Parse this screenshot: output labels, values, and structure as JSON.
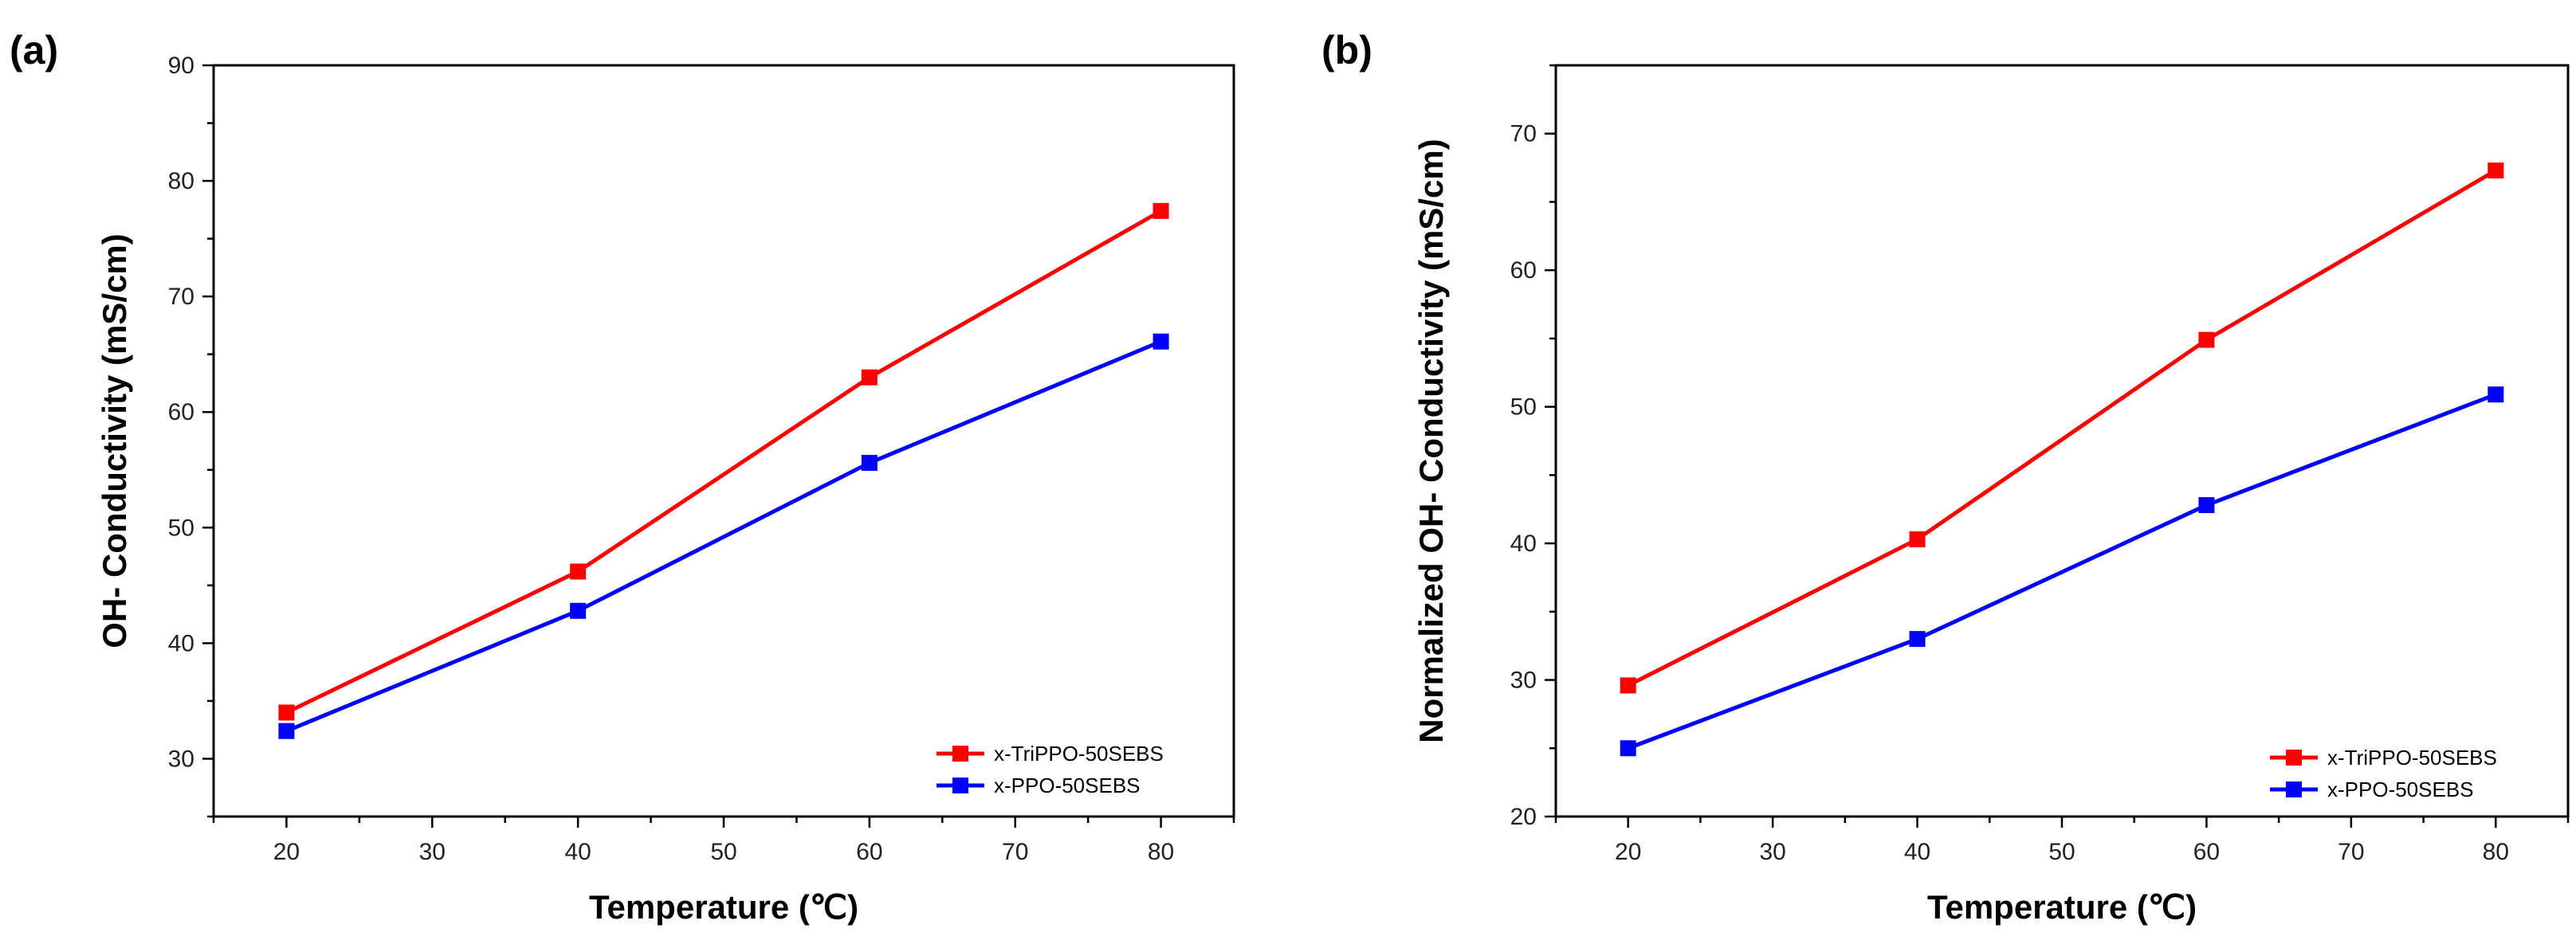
{
  "chart_data": [
    {
      "panel_label": "(a)",
      "type": "line",
      "xlabel": "Temperature (℃)",
      "ylabel": "OH- Conductivity (mS/cm)",
      "xlim": [
        15,
        85
      ],
      "ylim": [
        25,
        90
      ],
      "xticks": [
        20,
        30,
        40,
        50,
        60,
        70,
        80
      ],
      "yticks": [
        30,
        40,
        50,
        60,
        70,
        80,
        90
      ],
      "x": [
        20,
        40,
        60,
        80
      ],
      "series": [
        {
          "name": "x-TriPPO-50SEBS",
          "color": "#ff0000",
          "values": [
            34.0,
            46.2,
            63.0,
            77.4
          ]
        },
        {
          "name": "x-PPO-50SEBS",
          "color": "#0000ff",
          "values": [
            32.4,
            42.8,
            55.6,
            66.1
          ]
        }
      ],
      "legend_position": "bottom-right"
    },
    {
      "panel_label": "(b)",
      "type": "line",
      "xlabel": "Temperature (℃)",
      "ylabel": "Normalized OH- Conductivity (mS/cm)",
      "xlim": [
        15,
        85
      ],
      "ylim": [
        20,
        75
      ],
      "xticks": [
        20,
        30,
        40,
        50,
        60,
        70,
        80
      ],
      "yticks": [
        20,
        30,
        40,
        50,
        60,
        70
      ],
      "x": [
        20,
        40,
        60,
        80
      ],
      "series": [
        {
          "name": "x-TriPPO-50SEBS",
          "color": "#ff0000",
          "values": [
            29.6,
            40.3,
            54.9,
            67.3
          ]
        },
        {
          "name": "x-PPO-50SEBS",
          "color": "#0000ff",
          "values": [
            25.0,
            33.0,
            42.8,
            50.9
          ]
        }
      ],
      "legend_position": "bottom-right"
    }
  ]
}
